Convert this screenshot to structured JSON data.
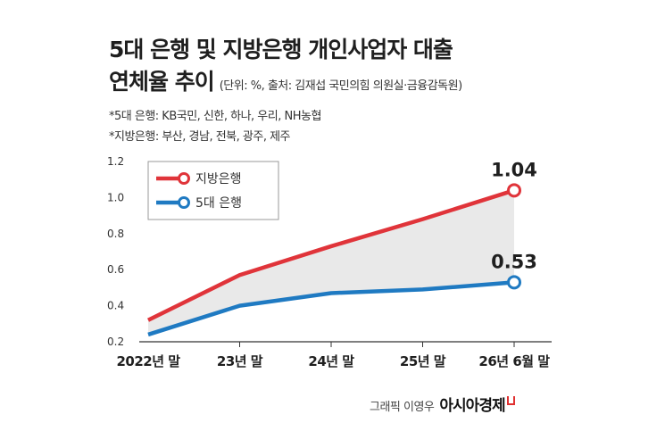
{
  "title": {
    "line1": "5대 은행 및 지방은행 개인사업자 대출",
    "line2": "연체율 추이",
    "unit_source": "(단위: %, 출처: 김재섭 국민의힘 의원실·금융감독원)"
  },
  "notes": [
    "*5대 은행: KB국민, 신한, 하나, 우리, NH농협",
    "*지방은행: 부산, 경남, 전북, 광주, 제주"
  ],
  "credit": {
    "byline": "그래픽 이영우",
    "brand": "아시아경제"
  },
  "colors": {
    "regional": "#e0343a",
    "major": "#1f7ac2",
    "area": "#e9e9e9",
    "axis": "#333333"
  },
  "chart_data": {
    "type": "line",
    "categories": [
      "2022년 말",
      "23년 말",
      "24년 말",
      "25년 말",
      "26년 6월 말"
    ],
    "x": [
      0,
      1,
      2,
      3,
      4
    ],
    "series": [
      {
        "name": "지방은행",
        "values": [
          0.32,
          0.57,
          0.73,
          0.88,
          1.04
        ],
        "color": "#e0343a"
      },
      {
        "name": "5대 은행",
        "values": [
          0.24,
          0.4,
          0.47,
          0.49,
          0.53
        ],
        "color": "#1f7ac2"
      }
    ],
    "yticks": [
      "0.2",
      "0.4",
      "0.6",
      "0.8",
      "1.0",
      "1.2"
    ],
    "ylim": [
      0.2,
      1.2
    ],
    "end_labels": [
      "1.04",
      "0.53"
    ],
    "legend": "top-left",
    "grid": false
  }
}
